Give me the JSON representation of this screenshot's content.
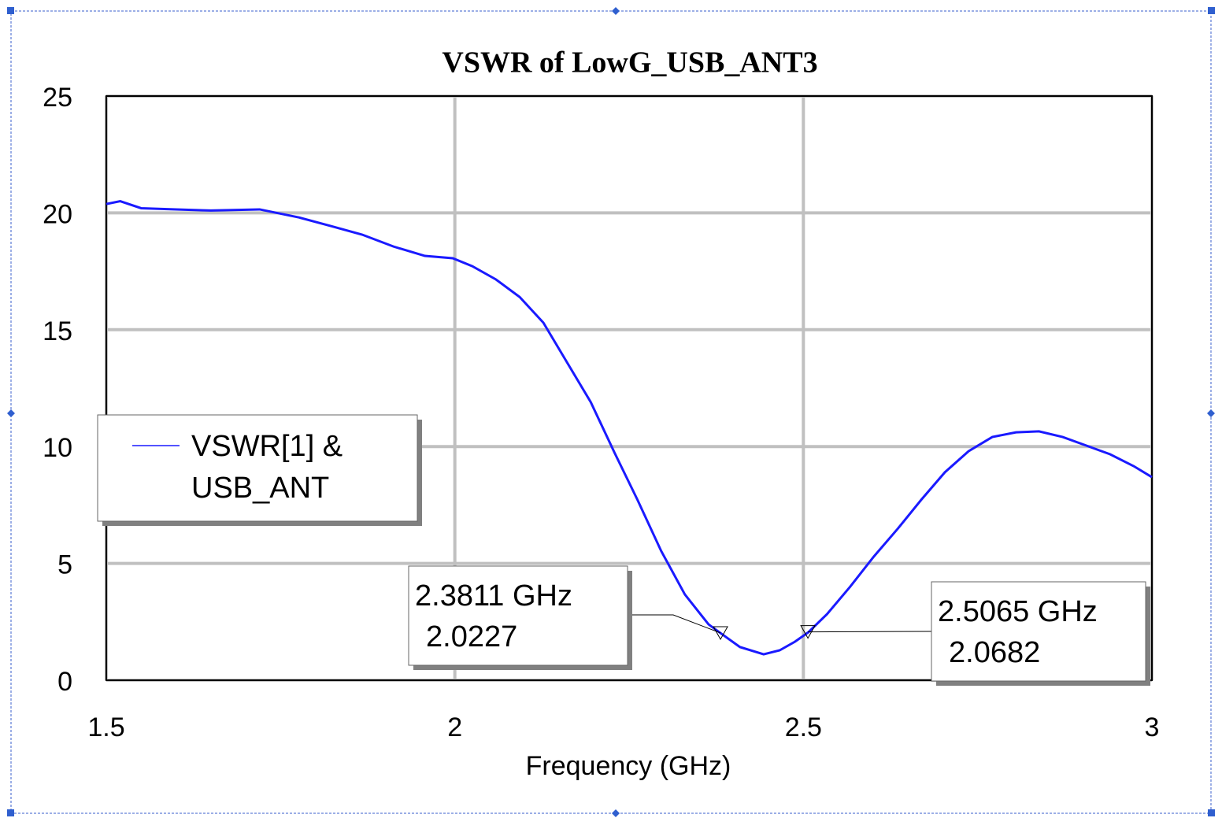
{
  "chart_data": {
    "type": "line",
    "title": "VSWR of LowG_USB_ANT3",
    "x_label": "Frequency (GHz)",
    "xlim": [
      1.5,
      3
    ],
    "xticks": [
      1.5,
      2,
      2.5,
      3
    ],
    "ylim": [
      0,
      25
    ],
    "yticks": [
      0,
      5,
      10,
      15,
      20,
      25
    ],
    "grid": true,
    "legend": "left",
    "series": [
      {
        "name": "VSWR[1] & USB_ANT",
        "color": "#1a1aff",
        "x": [
          1.5,
          1.52,
          1.55,
          1.6,
          1.65,
          1.72,
          1.777,
          1.822,
          1.867,
          1.912,
          1.957,
          1.997,
          2.025,
          2.059,
          2.093,
          2.127,
          2.161,
          2.195,
          2.229,
          2.262,
          2.296,
          2.33,
          2.364,
          2.381,
          2.409,
          2.443,
          2.466,
          2.488,
          2.507,
          2.534,
          2.567,
          2.601,
          2.635,
          2.669,
          2.703,
          2.737,
          2.771,
          2.805,
          2.838,
          2.872,
          2.906,
          2.94,
          2.974,
          3.0
        ],
        "values": [
          20.38,
          20.5,
          20.2,
          20.15,
          20.1,
          20.15,
          19.8,
          19.44,
          19.07,
          18.56,
          18.16,
          18.06,
          17.72,
          17.15,
          16.4,
          15.3,
          13.6,
          11.9,
          9.74,
          7.72,
          5.53,
          3.67,
          2.39,
          2.02,
          1.42,
          1.11,
          1.28,
          1.65,
          2.05,
          2.83,
          4.0,
          5.29,
          6.47,
          7.72,
          8.9,
          9.8,
          10.41,
          10.61,
          10.65,
          10.41,
          10.04,
          9.67,
          9.16,
          8.69
        ]
      }
    ],
    "markers": [
      {
        "x": 2.3811,
        "x_label": "2.3811 GHz",
        "y": 2.0227
      },
      {
        "x": 2.5065,
        "x_label": "2.5065 GHz",
        "y": 2.0682
      }
    ]
  }
}
